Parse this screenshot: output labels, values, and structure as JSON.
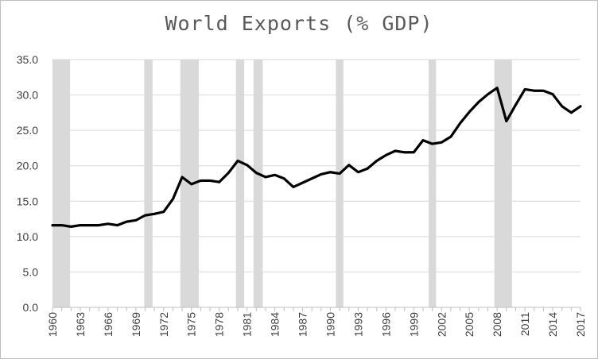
{
  "chart_data": {
    "type": "line",
    "title": "World Exports (% GDP)",
    "xlabel": "",
    "ylabel": "",
    "xlim": [
      1960,
      2017
    ],
    "ylim": [
      0,
      35
    ],
    "y_ticks": [
      "0.0",
      "5.0",
      "10.0",
      "15.0",
      "20.0",
      "25.0",
      "30.0",
      "35.0"
    ],
    "x_ticks": [
      "1960",
      "1963",
      "1966",
      "1969",
      "1972",
      "1975",
      "1978",
      "1981",
      "1984",
      "1987",
      "1990",
      "1993",
      "1996",
      "1999",
      "2002",
      "2005",
      "2008",
      "2011",
      "2014",
      "2017"
    ],
    "grid": "horizontal",
    "legend": "none",
    "line_color": "#000000",
    "shade_color": "#d9d9d9",
    "shaded_periods": [
      [
        1960,
        1961.9
      ],
      [
        1969.9,
        1970.8
      ],
      [
        1973.8,
        1975.8
      ],
      [
        1979.8,
        1980.7
      ],
      [
        1981.7,
        1982.7
      ],
      [
        1990.6,
        1991.4
      ],
      [
        2000.6,
        2001.4
      ],
      [
        2007.7,
        2009.6
      ]
    ],
    "x": [
      1960,
      1961,
      1962,
      1963,
      1964,
      1965,
      1966,
      1967,
      1968,
      1969,
      1970,
      1971,
      1972,
      1973,
      1974,
      1975,
      1976,
      1977,
      1978,
      1979,
      1980,
      1981,
      1982,
      1983,
      1984,
      1985,
      1986,
      1987,
      1988,
      1989,
      1990,
      1991,
      1992,
      1993,
      1994,
      1995,
      1996,
      1997,
      1998,
      1999,
      2000,
      2001,
      2002,
      2003,
      2004,
      2005,
      2006,
      2007,
      2008,
      2009,
      2010,
      2011,
      2012,
      2013,
      2014,
      2015,
      2016,
      2017
    ],
    "values": [
      11.6,
      11.6,
      11.4,
      11.6,
      11.6,
      11.6,
      11.8,
      11.6,
      12.1,
      12.3,
      13.0,
      13.2,
      13.5,
      15.3,
      18.4,
      17.4,
      17.9,
      17.9,
      17.7,
      19.0,
      20.7,
      20.1,
      19.0,
      18.4,
      18.7,
      18.2,
      17.0,
      17.6,
      18.2,
      18.8,
      19.1,
      18.9,
      20.1,
      19.1,
      19.6,
      20.7,
      21.5,
      22.1,
      21.9,
      21.9,
      23.6,
      23.1,
      23.3,
      24.1,
      26.0,
      27.6,
      29.0,
      30.1,
      31.0,
      26.3,
      28.6,
      30.8,
      30.6,
      30.6,
      30.1,
      28.4,
      27.5,
      28.4
    ]
  }
}
